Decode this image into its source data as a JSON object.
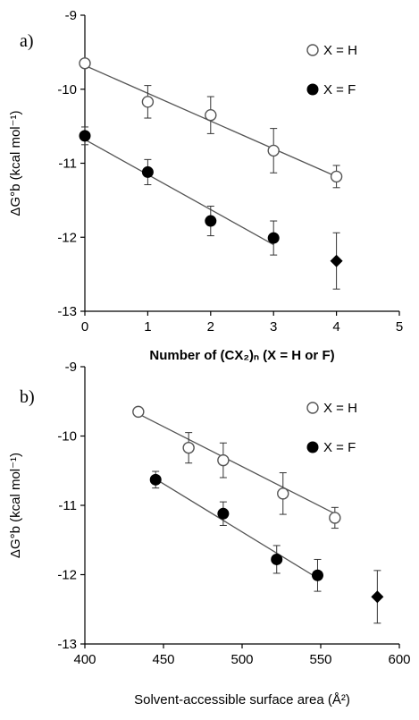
{
  "chart_data": [
    {
      "panel_label": "a)",
      "type": "scatter",
      "xlabel": "Number of (CX₂)ₙ (X = H or F)",
      "ylabel": "ΔG°b (kcal mol⁻¹)",
      "xlim": [
        0,
        5
      ],
      "ylim": [
        -13,
        -9
      ],
      "xticks": [
        "0",
        "1",
        "2",
        "3",
        "4",
        "5"
      ],
      "yticks": [
        "-9",
        "-10",
        "-11",
        "-12",
        "-13"
      ],
      "legend_position": "top-right",
      "series": [
        {
          "name": "X = H",
          "marker": "open-circle",
          "x": [
            0,
            1,
            2,
            3,
            4
          ],
          "y": [
            -9.65,
            -10.17,
            -10.35,
            -10.83,
            -11.18
          ],
          "err": [
            0,
            0.22,
            0.25,
            0.3,
            0.15
          ],
          "fit": [
            [
              0,
              -9.68
            ],
            [
              4,
              -11.18
            ]
          ]
        },
        {
          "name": "X = F",
          "marker": "filled-circle",
          "x": [
            0,
            1,
            2,
            3
          ],
          "y": [
            -10.63,
            -11.12,
            -11.78,
            -12.01
          ],
          "err": [
            0.12,
            0.17,
            0.2,
            0.23
          ],
          "fit": [
            [
              0,
              -10.68
            ],
            [
              3,
              -12.1
            ]
          ]
        },
        {
          "name": "",
          "marker": "filled-diamond",
          "x": [
            4
          ],
          "y": [
            -12.32
          ],
          "err": [
            0.38
          ]
        }
      ]
    },
    {
      "panel_label": "b)",
      "type": "scatter",
      "xlabel": "Solvent-accessible surface area (Å²)",
      "ylabel": "ΔG°b (kcal mol⁻¹)",
      "xlim": [
        400,
        600
      ],
      "ylim": [
        -13,
        -9
      ],
      "xticks": [
        "400",
        "450",
        "500",
        "550",
        "600"
      ],
      "yticks": [
        "-9",
        "-10",
        "-11",
        "-12",
        "-13"
      ],
      "legend_position": "top-right",
      "series": [
        {
          "name": "X = H",
          "marker": "open-circle",
          "x": [
            434,
            466,
            488,
            526,
            559
          ],
          "y": [
            -9.65,
            -10.17,
            -10.35,
            -10.83,
            -11.18
          ],
          "err": [
            0,
            0.22,
            0.25,
            0.3,
            0.15
          ],
          "fit": [
            [
              434,
              -9.68
            ],
            [
              559,
              -11.12
            ]
          ]
        },
        {
          "name": "X = F",
          "marker": "filled-circle",
          "x": [
            445,
            488,
            522,
            548
          ],
          "y": [
            -10.63,
            -11.12,
            -11.78,
            -12.01
          ],
          "err": [
            0.12,
            0.17,
            0.2,
            0.23
          ],
          "fit": [
            [
              445,
              -10.62
            ],
            [
              548,
              -12.05
            ]
          ]
        },
        {
          "name": "",
          "marker": "filled-diamond",
          "x": [
            586
          ],
          "y": [
            -12.32
          ],
          "err": [
            0.38
          ]
        }
      ]
    }
  ]
}
